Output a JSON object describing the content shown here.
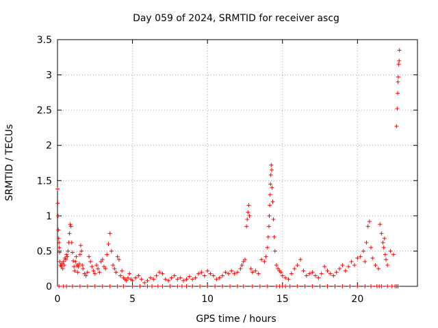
{
  "chart_data": {
    "type": "scatter",
    "title": "Day 059 of 2024, SRMTID for receiver ascg",
    "xlabel": "GPS time / hours",
    "ylabel": "SRMTID / TECUs",
    "xlim": [
      0,
      24
    ],
    "ylim": [
      0,
      3.5
    ],
    "xticks": [
      0,
      5,
      10,
      15,
      20
    ],
    "xtick_labels": [
      "0",
      "5",
      "10",
      "15",
      "20"
    ],
    "yticks": [
      0,
      0.5,
      1,
      1.5,
      2,
      2.5,
      3,
      3.5
    ],
    "ytick_labels": [
      "0",
      "0.5",
      "1",
      "1.5",
      "2",
      "2.5",
      "3",
      "3.5"
    ],
    "grid": true,
    "marker": "+",
    "series": [
      {
        "name": "SRMTID",
        "color": "#ff0000",
        "x": [
          0.0,
          0.02,
          0.04,
          0.06,
          0.08,
          0.1,
          0.12,
          0.14,
          0.16,
          0.2,
          0.25,
          0.3,
          0.35,
          0.4,
          0.45,
          0.5,
          0.55,
          0.6,
          0.65,
          0.7,
          0.75,
          0.8,
          0.85,
          0.9,
          0.95,
          1.0,
          1.05,
          1.1,
          1.15,
          1.2,
          1.25,
          1.3,
          1.35,
          1.4,
          1.45,
          1.5,
          1.55,
          1.6,
          1.65,
          1.7,
          1.8,
          1.9,
          2.0,
          2.1,
          2.2,
          2.3,
          2.4,
          2.5,
          2.6,
          2.7,
          2.8,
          2.9,
          3.0,
          3.1,
          3.2,
          3.3,
          3.4,
          3.5,
          3.6,
          3.7,
          3.8,
          3.9,
          4.0,
          4.1,
          4.2,
          4.3,
          4.4,
          4.5,
          4.6,
          4.7,
          4.8,
          4.9,
          5.0,
          5.2,
          5.4,
          5.6,
          5.8,
          6.0,
          6.2,
          6.4,
          6.6,
          6.8,
          7.0,
          7.2,
          7.4,
          7.6,
          7.8,
          8.0,
          8.2,
          8.4,
          8.6,
          8.8,
          9.0,
          9.2,
          9.4,
          9.6,
          9.8,
          10.0,
          10.2,
          10.4,
          10.6,
          10.8,
          11.0,
          11.2,
          11.4,
          11.6,
          11.8,
          12.0,
          12.2,
          12.3,
          12.4,
          12.5,
          12.6,
          12.65,
          12.7,
          12.75,
          12.8,
          12.9,
          13.0,
          13.2,
          13.4,
          13.6,
          13.8,
          13.9,
          14.0,
          14.05,
          14.1,
          14.12,
          14.15,
          14.18,
          14.2,
          14.22,
          14.25,
          14.28,
          14.3,
          14.35,
          14.4,
          14.45,
          14.5,
          14.6,
          14.7,
          14.8,
          14.9,
          15.0,
          15.2,
          15.4,
          15.6,
          15.8,
          16.0,
          16.2,
          16.4,
          16.6,
          16.8,
          17.0,
          17.2,
          17.4,
          17.6,
          17.8,
          18.0,
          18.2,
          18.4,
          18.6,
          18.8,
          19.0,
          19.2,
          19.4,
          19.6,
          19.8,
          20.0,
          20.2,
          20.4,
          20.5,
          20.6,
          20.7,
          20.8,
          20.9,
          21.0,
          21.2,
          21.4,
          21.5,
          21.6,
          21.7,
          21.75,
          21.8,
          21.85,
          21.9,
          22.0,
          22.2,
          22.4,
          22.6,
          22.65,
          22.68,
          22.7,
          22.72,
          22.75,
          22.78,
          22.8
        ],
        "y": [
          1.38,
          1.18,
          1.0,
          0.8,
          0.68,
          0.62,
          0.55,
          0.48,
          0.35,
          0.3,
          0.28,
          0.32,
          0.25,
          0.35,
          0.3,
          0.4,
          0.38,
          0.45,
          0.42,
          0.5,
          0.62,
          0.75,
          0.88,
          0.85,
          0.62,
          0.48,
          0.36,
          0.28,
          0.22,
          0.35,
          0.42,
          0.3,
          0.2,
          0.28,
          0.32,
          0.45,
          0.58,
          0.5,
          0.3,
          0.25,
          0.18,
          0.15,
          0.2,
          0.42,
          0.35,
          0.28,
          0.22,
          0.18,
          0.3,
          0.25,
          0.2,
          0.35,
          0.38,
          0.28,
          0.25,
          0.45,
          0.6,
          0.75,
          0.5,
          0.3,
          0.25,
          0.2,
          0.42,
          0.38,
          0.15,
          0.22,
          0.12,
          0.1,
          0.08,
          0.12,
          0.18,
          0.1,
          0.08,
          0.12,
          0.15,
          0.1,
          0.05,
          0.08,
          0.12,
          0.1,
          0.15,
          0.2,
          0.18,
          0.1,
          0.08,
          0.12,
          0.15,
          0.1,
          0.12,
          0.08,
          0.1,
          0.14,
          0.1,
          0.12,
          0.18,
          0.2,
          0.15,
          0.22,
          0.18,
          0.15,
          0.1,
          0.12,
          0.15,
          0.2,
          0.18,
          0.22,
          0.18,
          0.2,
          0.25,
          0.3,
          0.35,
          0.38,
          0.85,
          0.95,
          1.05,
          1.15,
          1.0,
          0.25,
          0.2,
          0.22,
          0.18,
          0.38,
          0.35,
          0.42,
          0.55,
          0.7,
          0.85,
          1.0,
          1.15,
          1.3,
          1.45,
          1.58,
          1.72,
          1.65,
          1.4,
          1.2,
          0.95,
          0.7,
          0.5,
          0.3,
          0.25,
          0.22,
          0.2,
          0.15,
          0.12,
          0.1,
          0.18,
          0.25,
          0.3,
          0.38,
          0.22,
          0.15,
          0.18,
          0.2,
          0.15,
          0.12,
          0.18,
          0.28,
          0.22,
          0.18,
          0.15,
          0.2,
          0.25,
          0.3,
          0.22,
          0.28,
          0.35,
          0.3,
          0.4,
          0.42,
          0.5,
          0.35,
          0.62,
          0.85,
          0.92,
          0.55,
          0.4,
          0.3,
          0.25,
          0.88,
          0.75,
          0.62,
          0.55,
          0.68,
          0.45,
          0.38,
          0.3,
          0.5,
          0.45,
          2.27,
          2.52,
          2.74,
          2.9,
          2.97,
          3.15,
          3.2,
          3.35
        ],
        "zero_x": [
          0.1,
          0.4,
          0.6,
          1.0,
          1.5,
          2.0,
          2.5,
          3.0,
          3.5,
          4.0,
          4.4,
          5.0,
          5.5,
          6.0,
          6.3,
          6.7,
          7.0,
          7.5,
          8.0,
          8.3,
          8.6,
          9.0,
          9.5,
          10.0,
          10.5,
          11.0,
          11.5,
          12.0,
          12.4,
          13.0,
          13.5,
          14.0,
          14.6,
          14.8,
          15.0,
          15.2,
          15.5,
          16.0,
          16.5,
          17.0,
          17.5,
          18.0,
          18.5,
          19.0,
          19.5,
          20.0,
          20.5,
          20.9,
          21.3,
          21.45,
          21.6,
          22.0,
          22.3,
          22.5,
          22.6,
          22.7
        ]
      }
    ]
  }
}
